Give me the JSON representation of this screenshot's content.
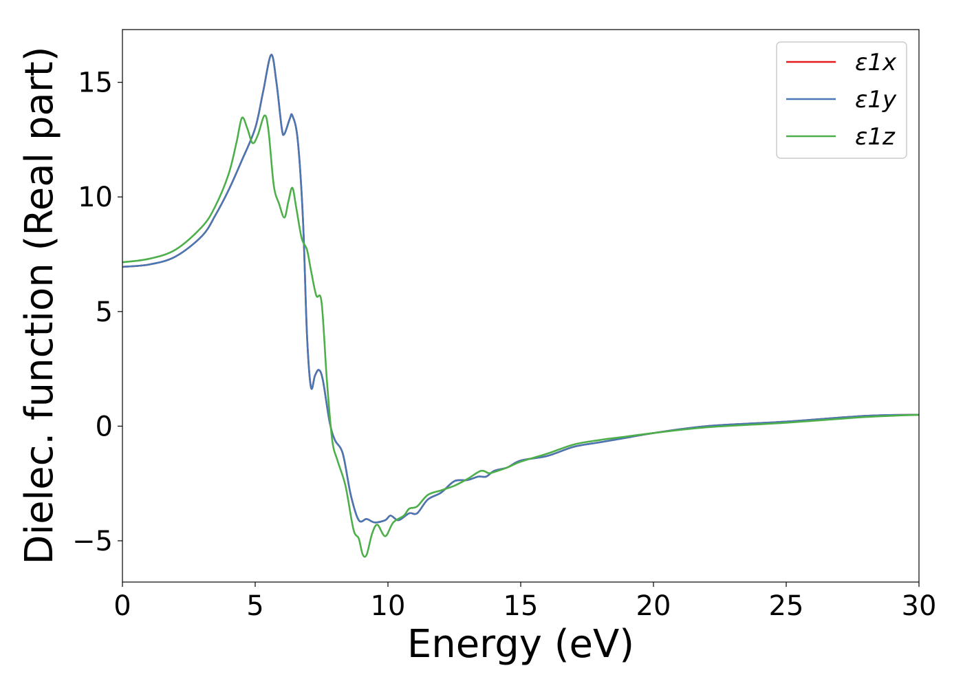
{
  "chart_data": {
    "type": "line",
    "title": "",
    "xlabel": "Energy (eV)",
    "ylabel": "Dielec. function (Real part)",
    "xlim": [
      0,
      30
    ],
    "ylim": [
      -6.8,
      17.3
    ],
    "xticks": [
      0,
      5,
      10,
      15,
      20,
      25,
      30
    ],
    "xtick_labels": [
      "0",
      "5",
      "10",
      "15",
      "20",
      "25",
      "30"
    ],
    "yticks": [
      -5,
      0,
      5,
      10,
      15
    ],
    "ytick_labels": [
      "−5",
      "0",
      "5",
      "10",
      "15"
    ],
    "grid": false,
    "legend_position": "top-right",
    "series": [
      {
        "name": "ε1x",
        "color": "#e41a1c",
        "points": [
          [
            0,
            6.95
          ],
          [
            1,
            7.05
          ],
          [
            2,
            7.4
          ],
          [
            3,
            8.3
          ],
          [
            3.5,
            9.2
          ],
          [
            4,
            10.3
          ],
          [
            4.5,
            11.6
          ],
          [
            5,
            13.0
          ],
          [
            5.3,
            14.6
          ],
          [
            5.6,
            16.2
          ],
          [
            5.8,
            15.0
          ],
          [
            6.0,
            13.0
          ],
          [
            6.1,
            12.75
          ],
          [
            6.3,
            13.4
          ],
          [
            6.4,
            13.55
          ],
          [
            6.6,
            12.5
          ],
          [
            6.8,
            9.0
          ],
          [
            6.95,
            4.0
          ],
          [
            7.1,
            1.7
          ],
          [
            7.25,
            2.2
          ],
          [
            7.4,
            2.45
          ],
          [
            7.55,
            2.0
          ],
          [
            7.8,
            0.2
          ],
          [
            8.0,
            -0.6
          ],
          [
            8.3,
            -1.2
          ],
          [
            8.6,
            -3.0
          ],
          [
            8.9,
            -4.1
          ],
          [
            9.2,
            -4.05
          ],
          [
            9.5,
            -4.2
          ],
          [
            9.9,
            -4.1
          ],
          [
            10.1,
            -3.9
          ],
          [
            10.4,
            -4.1
          ],
          [
            10.8,
            -3.8
          ],
          [
            11.1,
            -3.8
          ],
          [
            11.5,
            -3.2
          ],
          [
            12.0,
            -2.9
          ],
          [
            12.5,
            -2.4
          ],
          [
            13.0,
            -2.35
          ],
          [
            13.4,
            -2.2
          ],
          [
            13.7,
            -2.2
          ],
          [
            14.0,
            -1.95
          ],
          [
            14.5,
            -1.8
          ],
          [
            15.0,
            -1.5
          ],
          [
            16.0,
            -1.3
          ],
          [
            17.0,
            -0.9
          ],
          [
            18.0,
            -0.7
          ],
          [
            19.0,
            -0.5
          ],
          [
            20.0,
            -0.3
          ],
          [
            22.0,
            0.0
          ],
          [
            25.0,
            0.2
          ],
          [
            28.0,
            0.45
          ],
          [
            30.0,
            0.5
          ]
        ]
      },
      {
        "name": "ε1y",
        "color": "#4878b4",
        "points": [
          [
            0,
            6.95
          ],
          [
            1,
            7.05
          ],
          [
            2,
            7.4
          ],
          [
            3,
            8.3
          ],
          [
            3.5,
            9.2
          ],
          [
            4,
            10.3
          ],
          [
            4.5,
            11.6
          ],
          [
            5,
            13.0
          ],
          [
            5.3,
            14.6
          ],
          [
            5.6,
            16.2
          ],
          [
            5.8,
            15.0
          ],
          [
            6.0,
            13.0
          ],
          [
            6.1,
            12.75
          ],
          [
            6.3,
            13.4
          ],
          [
            6.4,
            13.55
          ],
          [
            6.6,
            12.5
          ],
          [
            6.8,
            9.0
          ],
          [
            6.95,
            4.0
          ],
          [
            7.1,
            1.7
          ],
          [
            7.25,
            2.2
          ],
          [
            7.4,
            2.45
          ],
          [
            7.55,
            2.0
          ],
          [
            7.8,
            0.2
          ],
          [
            8.0,
            -0.6
          ],
          [
            8.3,
            -1.2
          ],
          [
            8.6,
            -3.0
          ],
          [
            8.9,
            -4.1
          ],
          [
            9.2,
            -4.05
          ],
          [
            9.5,
            -4.2
          ],
          [
            9.9,
            -4.1
          ],
          [
            10.1,
            -3.9
          ],
          [
            10.4,
            -4.1
          ],
          [
            10.8,
            -3.8
          ],
          [
            11.1,
            -3.8
          ],
          [
            11.5,
            -3.2
          ],
          [
            12.0,
            -2.9
          ],
          [
            12.5,
            -2.4
          ],
          [
            13.0,
            -2.35
          ],
          [
            13.4,
            -2.2
          ],
          [
            13.7,
            -2.2
          ],
          [
            14.0,
            -1.95
          ],
          [
            14.5,
            -1.8
          ],
          [
            15.0,
            -1.5
          ],
          [
            16.0,
            -1.3
          ],
          [
            17.0,
            -0.9
          ],
          [
            18.0,
            -0.7
          ],
          [
            19.0,
            -0.5
          ],
          [
            20.0,
            -0.3
          ],
          [
            22.0,
            0.0
          ],
          [
            25.0,
            0.2
          ],
          [
            28.0,
            0.45
          ],
          [
            30.0,
            0.5
          ]
        ]
      },
      {
        "name": "ε1z",
        "color": "#4daf4a",
        "points": [
          [
            0,
            7.15
          ],
          [
            1,
            7.3
          ],
          [
            2,
            7.7
          ],
          [
            3,
            8.7
          ],
          [
            3.5,
            9.6
          ],
          [
            4,
            11.0
          ],
          [
            4.3,
            12.4
          ],
          [
            4.5,
            13.45
          ],
          [
            4.7,
            13.0
          ],
          [
            4.9,
            12.35
          ],
          [
            5.1,
            12.7
          ],
          [
            5.35,
            13.55
          ],
          [
            5.5,
            12.9
          ],
          [
            5.7,
            10.5
          ],
          [
            5.9,
            9.7
          ],
          [
            6.1,
            9.1
          ],
          [
            6.25,
            9.8
          ],
          [
            6.4,
            10.4
          ],
          [
            6.55,
            9.5
          ],
          [
            6.75,
            8.2
          ],
          [
            6.95,
            7.7
          ],
          [
            7.1,
            6.8
          ],
          [
            7.3,
            5.7
          ],
          [
            7.5,
            5.4
          ],
          [
            7.7,
            2.0
          ],
          [
            7.9,
            -0.6
          ],
          [
            8.1,
            -1.5
          ],
          [
            8.4,
            -2.6
          ],
          [
            8.7,
            -4.5
          ],
          [
            8.9,
            -4.9
          ],
          [
            9.05,
            -5.6
          ],
          [
            9.2,
            -5.6
          ],
          [
            9.4,
            -4.7
          ],
          [
            9.6,
            -4.3
          ],
          [
            9.9,
            -4.8
          ],
          [
            10.2,
            -4.2
          ],
          [
            10.6,
            -3.9
          ],
          [
            10.8,
            -3.6
          ],
          [
            11.1,
            -3.5
          ],
          [
            11.5,
            -3.0
          ],
          [
            12.0,
            -2.8
          ],
          [
            12.5,
            -2.6
          ],
          [
            13.0,
            -2.3
          ],
          [
            13.5,
            -1.95
          ],
          [
            13.8,
            -2.05
          ],
          [
            14.0,
            -2.0
          ],
          [
            14.5,
            -1.8
          ],
          [
            15.0,
            -1.55
          ],
          [
            16.0,
            -1.2
          ],
          [
            17.0,
            -0.8
          ],
          [
            18.0,
            -0.6
          ],
          [
            19.0,
            -0.45
          ],
          [
            20.0,
            -0.3
          ],
          [
            22.0,
            -0.05
          ],
          [
            25.0,
            0.15
          ],
          [
            28.0,
            0.4
          ],
          [
            30.0,
            0.5
          ]
        ]
      }
    ]
  }
}
